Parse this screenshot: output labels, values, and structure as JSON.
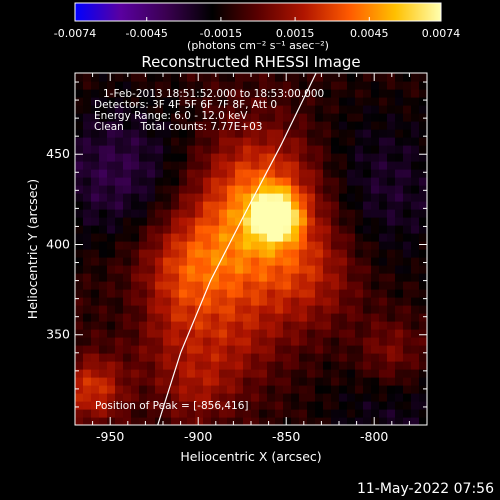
{
  "footer": {
    "timestamp": "11-May-2022 07:56"
  },
  "chart_data": {
    "type": "heatmap",
    "title": "Reconstructed RHESSI Image",
    "xlabel": "Heliocentric X (arcsec)",
    "ylabel": "Heliocentric Y (arcsec)",
    "xlim": [
      -970,
      -770
    ],
    "ylim": [
      300,
      495
    ],
    "xticks": [
      -950,
      -900,
      -850,
      -800
    ],
    "yticks": [
      350,
      400,
      450
    ],
    "annotations": [
      "1-Feb-2013 18:51:52.000 to 18:53:00.000",
      "Detectors: 3F 4F 5F 6F 7F 8F, Att 0",
      "Energy Range: 6.0 - 12.0 keV",
      "Clean     Total counts: 7.77E+03"
    ],
    "peak_label": "Position of Peak = [-856,416]",
    "peak": [
      -856,
      416
    ],
    "limb_arc": [
      [
        -923,
        300
      ],
      [
        -910,
        340
      ],
      [
        -893,
        380
      ],
      [
        -873,
        418
      ],
      [
        -853,
        455
      ],
      [
        -833,
        495
      ]
    ],
    "colorbar": {
      "min": -0.0074,
      "max": 0.0074,
      "ticks": [
        "-0.0074",
        "-0.0045",
        "-0.0015",
        "0.0015",
        "0.0045",
        "0.0074"
      ],
      "units_label": "(photons cm⁻² s⁻¹ asec⁻²)",
      "colors": [
        "#0000ff",
        "#5a00a0",
        "#3a0050",
        "#000000",
        "#5a0000",
        "#b01500",
        "#ff5a00",
        "#ffc000",
        "#ffffb0"
      ]
    },
    "emission_sources": [
      {
        "x": -856,
        "y": 416,
        "amplitude": 0.0072,
        "sigma": 9
      },
      {
        "x": -862,
        "y": 430,
        "amplitude": 0.004,
        "sigma": 25
      },
      {
        "x": -875,
        "y": 395,
        "amplitude": 0.003,
        "sigma": 30
      },
      {
        "x": -905,
        "y": 390,
        "amplitude": 0.0025,
        "sigma": 20
      },
      {
        "x": -835,
        "y": 385,
        "amplitude": 0.0022,
        "sigma": 22
      },
      {
        "x": -920,
        "y": 355,
        "amplitude": 0.002,
        "sigma": 20
      },
      {
        "x": -960,
        "y": 320,
        "amplitude": 0.0035,
        "sigma": 12
      },
      {
        "x": -900,
        "y": 320,
        "amplitude": 0.0018,
        "sigma": 14
      },
      {
        "x": -790,
        "y": 340,
        "amplitude": 0.0022,
        "sigma": 14
      },
      {
        "x": -880,
        "y": 345,
        "amplitude": 0.0015,
        "sigma": 18
      }
    ],
    "background_regions": [
      {
        "x": -945,
        "y": 440,
        "amplitude": -0.0025,
        "sigma": 30
      },
      {
        "x": -800,
        "y": 430,
        "amplitude": -0.002,
        "sigma": 35
      },
      {
        "x": -790,
        "y": 305,
        "amplitude": -0.0015,
        "sigma": 30
      },
      {
        "x": -935,
        "y": 360,
        "amplitude": -0.0012,
        "sigma": 15
      }
    ]
  }
}
